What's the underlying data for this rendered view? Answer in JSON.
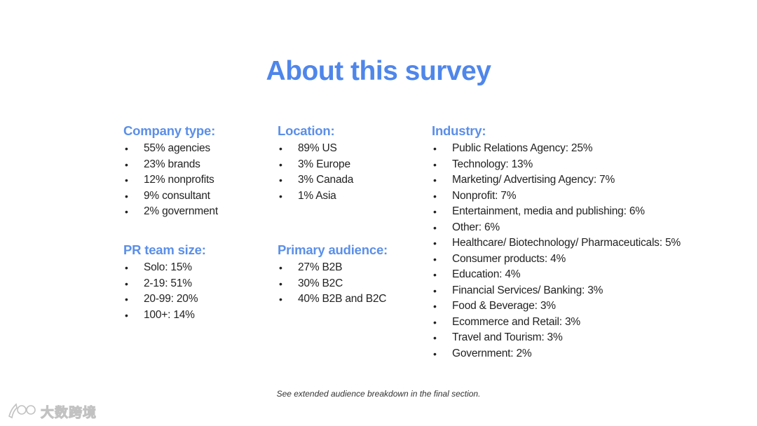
{
  "title": "About this survey",
  "accent_color": "#4f86ea",
  "sections": {
    "company": {
      "heading": "Company type:",
      "items": [
        "55% agencies",
        "23% brands",
        "12% nonprofits",
        "9% consultant",
        "2% government"
      ]
    },
    "location": {
      "heading": "Location:",
      "items": [
        "89% US",
        "3% Europe",
        "3% Canada",
        "1% Asia"
      ]
    },
    "industry": {
      "heading": "Industry:",
      "items": [
        "Public Relations Agency: 25%",
        "Technology: 13%",
        "Marketing/ Advertising Agency: 7%",
        "Nonprofit: 7%",
        "Entertainment, media and publishing: 6%",
        "Other: 6%",
        "Healthcare/ Biotechnology/ Pharmaceuticals: 5%",
        "Consumer products: 4%",
        "Education: 4%",
        "Financial Services/ Banking: 3%",
        "Food & Beverage: 3%",
        "Ecommerce and Retail: 3%",
        "Travel and Tourism: 3%",
        "Government: 2%"
      ]
    },
    "team_size": {
      "heading": "PR team size:",
      "items": [
        "Solo: 15%",
        "2-19: 51%",
        "20-99: 20%",
        "100+: 14%"
      ]
    },
    "audience": {
      "heading": "Primary audience:",
      "items": [
        "27% B2B",
        "30% B2C",
        "40% B2B and B2C"
      ]
    }
  },
  "bullet_char": "•",
  "footnote": "See extended audience breakdown in the final section.",
  "watermark": {
    "text": "大数跨境",
    "icon": "logo-icon"
  }
}
